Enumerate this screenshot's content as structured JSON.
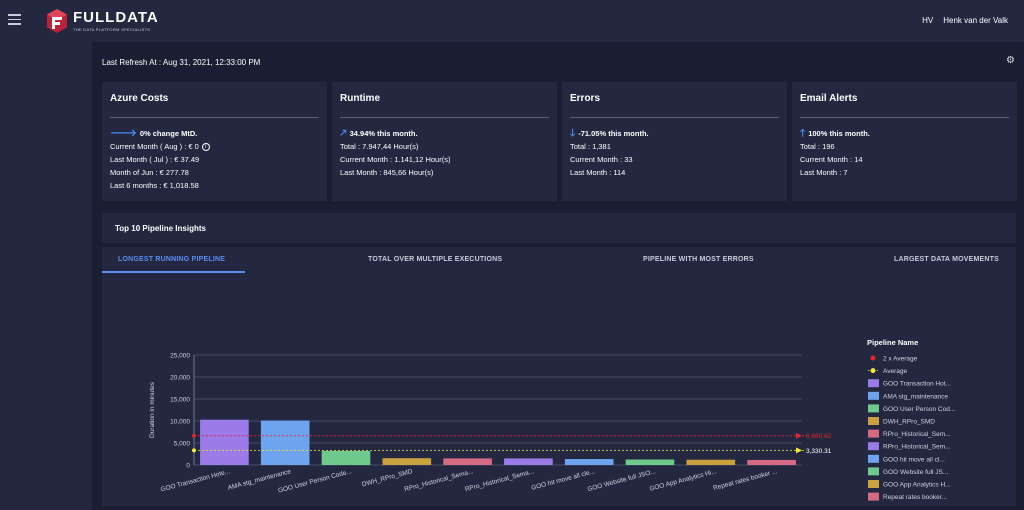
{
  "header": {
    "logo_title": "FULLDATA",
    "logo_subtitle": "THE DATA PLATFORM SPECIALISTS",
    "user_initials": "HV",
    "user_name": "Henk van der Valk"
  },
  "refresh": {
    "text": "Last Refresh At : Aug 31, 2021, 12:33:00 PM"
  },
  "cards": {
    "azure": {
      "title": "Azure Costs",
      "trend": "0% change MtD.",
      "trend_icon": "arrow-right-icon",
      "lines": [
        "Current Month ( Aug ) : € 0",
        "Last Month ( Jul ) : € 37.49",
        "Month of Jun : € 277.78",
        "Last 6 months : € 1,018.58"
      ]
    },
    "runtime": {
      "title": "Runtime",
      "trend": "34.94% this month.",
      "trend_icon": "arrow-up-right-icon",
      "lines": [
        "Total : 7.947,44 Hour(s)",
        "Current Month : 1.141,12 Hour(s)",
        "Last Month : 845,66 Hour(s)"
      ]
    },
    "errors": {
      "title": "Errors",
      "trend": "-71.05% this month.",
      "trend_icon": "arrow-down-icon",
      "lines": [
        "Total : 1,381",
        "Current Month : 33",
        "Last Month : 114"
      ]
    },
    "email": {
      "title": "Email Alerts",
      "trend": "100% this month.",
      "trend_icon": "arrow-up-icon",
      "lines": [
        "Total : 196",
        "Current Month : 14",
        "Last Month : 7"
      ]
    }
  },
  "insights": {
    "title": "Top 10 Pipeline Insights"
  },
  "tabs": [
    {
      "label": "LONGEST RUNNING PIPELINE",
      "active": true
    },
    {
      "label": "TOTAL OVER MULTIPLE EXECUTIONS",
      "active": false
    },
    {
      "label": "PIPELINE WITH MOST ERRORS",
      "active": false
    },
    {
      "label": "LARGEST DATA MOVEMENTS",
      "active": false
    }
  ],
  "chart_data": {
    "type": "bar",
    "ylabel": "Duration in minutes",
    "ylim": [
      0,
      25000
    ],
    "yticks": [
      "0",
      "5,000",
      "10,000",
      "15,000",
      "20,000",
      "25,000"
    ],
    "ytick_values": [
      0,
      5000,
      10000,
      15000,
      20000,
      25000
    ],
    "categories": [
      "GOO Transaction Hote...",
      "AMA stg_maintenance",
      "GOO User Person Code...",
      "DWH_RPro_SMD",
      "RPro_Historical_Sema...",
      "RPro_Historical_Sema...",
      "GOO hit move all cle...",
      "GOO Website full JSO...",
      "GOO App Analytics Hi...",
      "Repeat rates booker ..."
    ],
    "values": [
      10300,
      10100,
      3200,
      1550,
      1500,
      1500,
      1350,
      1250,
      1200,
      1150
    ],
    "colors": [
      "#9b7be8",
      "#6ea4ee",
      "#6ec98d",
      "#c9a13e",
      "#d46a84",
      "#9b7be8",
      "#6ea4ee",
      "#6ec98d",
      "#c9a13e",
      "#d46a84"
    ],
    "average": {
      "value": 3330.31,
      "label": "3,330.31",
      "color": "#f2ea3a"
    },
    "double_average": {
      "value": 6660.62,
      "label": "6,660.62",
      "color": "#e0262c"
    },
    "legend_title": "Pipeline Name",
    "legend": [
      {
        "name": "2 x Average",
        "kind": "dot",
        "color": "#e0262c"
      },
      {
        "name": "Average",
        "kind": "dotline",
        "color": "#f2ea3a"
      },
      {
        "name": "GOO Transaction Hot...",
        "kind": "box",
        "color": "#9b7be8"
      },
      {
        "name": "AMA stg_maintenance",
        "kind": "box",
        "color": "#6ea4ee"
      },
      {
        "name": "GOO User Person Cod...",
        "kind": "box",
        "color": "#6ec98d"
      },
      {
        "name": "DWH_RPro_SMD",
        "kind": "box",
        "color": "#c9a13e"
      },
      {
        "name": "RPro_Historical_Sem...",
        "kind": "box",
        "color": "#d46a84"
      },
      {
        "name": "RPro_Historical_Sem...",
        "kind": "box",
        "color": "#9b7be8"
      },
      {
        "name": "GOO hit move all cl...",
        "kind": "box",
        "color": "#6ea4ee"
      },
      {
        "name": "GOO Website full JS...",
        "kind": "box",
        "color": "#6ec98d"
      },
      {
        "name": "GOO App Analytics H...",
        "kind": "box",
        "color": "#c9a13e"
      },
      {
        "name": "Repeat rates booker...",
        "kind": "box",
        "color": "#d46a84"
      }
    ],
    "grid": true,
    "legend_position": "right"
  }
}
